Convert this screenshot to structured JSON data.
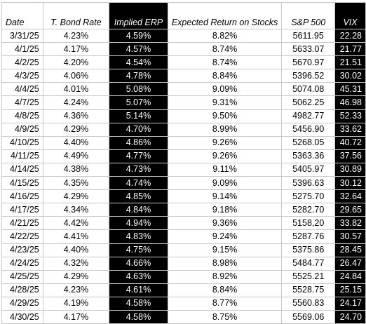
{
  "table": {
    "headers": {
      "date": "Date",
      "bond": "T. Bond Rate",
      "erp": "Implied ERP",
      "exp": "Expected Return on Stocks",
      "sp": "S&P 500",
      "vix": "VIX"
    },
    "rows": [
      {
        "date": "3/31/25",
        "bond": "4.23%",
        "erp": "4.59%",
        "exp": "8.82%",
        "sp": "5611.95",
        "vix": "22.28"
      },
      {
        "date": "4/1/25",
        "bond": "4.17%",
        "erp": "4.57%",
        "exp": "8.74%",
        "sp": "5633.07",
        "vix": "21.77"
      },
      {
        "date": "4/2/25",
        "bond": "4.20%",
        "erp": "4.54%",
        "exp": "8.74%",
        "sp": "5670.97",
        "vix": "21.51"
      },
      {
        "date": "4/3/25",
        "bond": "4.06%",
        "erp": "4.78%",
        "exp": "8.84%",
        "sp": "5396.52",
        "vix": "30.02"
      },
      {
        "date": "4/4/25",
        "bond": "4.01%",
        "erp": "5.08%",
        "exp": "9.09%",
        "sp": "5074.08",
        "vix": "45.31"
      },
      {
        "date": "4/7/25",
        "bond": "4.24%",
        "erp": "5.07%",
        "exp": "9.31%",
        "sp": "5062.25",
        "vix": "46.98"
      },
      {
        "date": "4/8/25",
        "bond": "4.36%",
        "erp": "5.14%",
        "exp": "9.50%",
        "sp": "4982.77",
        "vix": "52.33"
      },
      {
        "date": "4/9/25",
        "bond": "4.29%",
        "erp": "4.70%",
        "exp": "8.99%",
        "sp": "5456.90",
        "vix": "33.62"
      },
      {
        "date": "4/10/25",
        "bond": "4.40%",
        "erp": "4.86%",
        "exp": "9.26%",
        "sp": "5268.05",
        "vix": "40.72"
      },
      {
        "date": "4/11/25",
        "bond": "4.49%",
        "erp": "4.77%",
        "exp": "9.26%",
        "sp": "5363.36",
        "vix": "37.56"
      },
      {
        "date": "4/14/25",
        "bond": "4.38%",
        "erp": "4.73%",
        "exp": "9.11%",
        "sp": "5405.97",
        "vix": "30.89"
      },
      {
        "date": "4/15/25",
        "bond": "4.35%",
        "erp": "4.74%",
        "exp": "9.09%",
        "sp": "5396.63",
        "vix": "30.12"
      },
      {
        "date": "4/16/25",
        "bond": "4.29%",
        "erp": "4.85%",
        "exp": "9.14%",
        "sp": "5275.70",
        "vix": "32.64"
      },
      {
        "date": "4/17/25",
        "bond": "4.34%",
        "erp": "4.84%",
        "exp": "9.18%",
        "sp": "5282.70",
        "vix": "29.65"
      },
      {
        "date": "4/21/25",
        "bond": "4.42%",
        "erp": "4.94%",
        "exp": "9.36%",
        "sp": "5158,20",
        "vix": "33.82"
      },
      {
        "date": "4/22/25",
        "bond": "4.41%",
        "erp": "4.83%",
        "exp": "9.24%",
        "sp": "5287.76",
        "vix": "30.57"
      },
      {
        "date": "4/23/25",
        "bond": "4.40%",
        "erp": "4.75%",
        "exp": "9.15%",
        "sp": "5375.86",
        "vix": "28.45"
      },
      {
        "date": "4/24/25",
        "bond": "4.32%",
        "erp": "4.66%",
        "exp": "8.98%",
        "sp": "5484.77",
        "vix": "26.47"
      },
      {
        "date": "4/25/25",
        "bond": "4.29%",
        "erp": "4.63%",
        "exp": "8.92%",
        "sp": "5525.21",
        "vix": "24.84"
      },
      {
        "date": "4/28/25",
        "bond": "4.23%",
        "erp": "4.61%",
        "exp": "8.84%",
        "sp": "5528.75",
        "vix": "25.15"
      },
      {
        "date": "4/29/25",
        "bond": "4.19%",
        "erp": "4.58%",
        "exp": "8.77%",
        "sp": "5560.83",
        "vix": "24.17"
      },
      {
        "date": "4/30/25",
        "bond": "4.17%",
        "erp": "4.58%",
        "exp": "8.75%",
        "sp": "5569.06",
        "vix": "24.70"
      }
    ]
  }
}
